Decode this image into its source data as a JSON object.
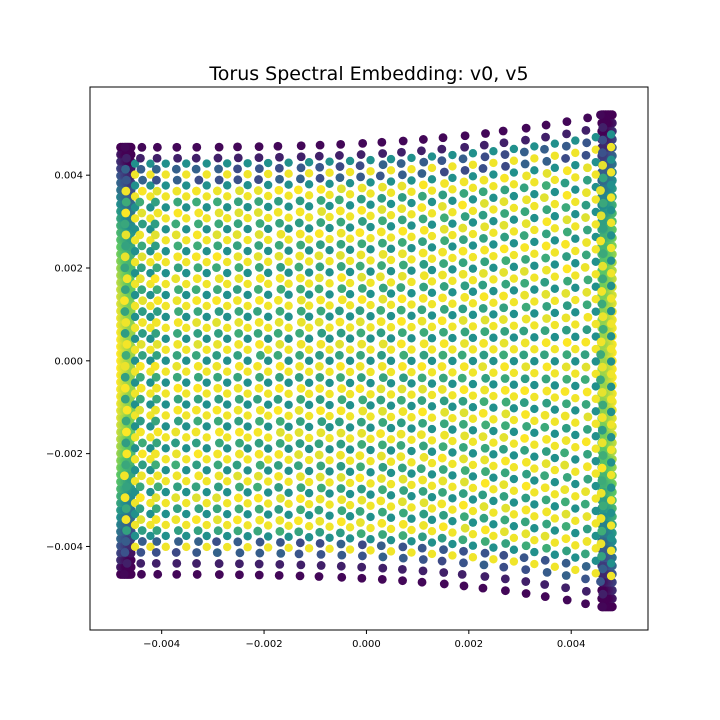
{
  "chart_data": {
    "type": "scatter",
    "title": "Torus Spectral Embedding: v0, v5",
    "xlabel": "",
    "ylabel": "",
    "xlim": [
      -0.0054,
      0.0055
    ],
    "ylim": [
      -0.0058,
      0.0059
    ],
    "x_ticks": [
      -0.004,
      -0.002,
      0.0,
      0.002,
      0.004
    ],
    "x_tick_labels": [
      "−0.004",
      "−0.002",
      "0.000",
      "0.002",
      "0.004"
    ],
    "y_ticks": [
      -0.004,
      -0.002,
      0.0,
      0.002,
      0.004
    ],
    "y_tick_labels": [
      "−0.004",
      "−0.002",
      "0.000",
      "0.002",
      "0.004"
    ],
    "grid": false,
    "legend": "none",
    "colormap": "viridis",
    "columns_x": [
      -0.0047,
      -0.0044,
      -0.0041,
      -0.0037,
      -0.0033,
      -0.0029,
      -0.0025,
      -0.0021,
      -0.0017,
      -0.0013,
      -0.0009,
      -0.0005,
      -0.0001,
      0.0003,
      0.0007,
      0.0011,
      0.0015,
      0.0019,
      0.0023,
      0.0027,
      0.0031,
      0.0035,
      0.0039,
      0.0043,
      0.0046
    ],
    "y_extent_left": [
      -0.0046,
      0.0046
    ],
    "y_extent_right": [
      -0.0053,
      0.0053
    ],
    "rows_per_column": 40
  },
  "colors": {
    "viridis_dark": "#440154",
    "viridis_blue": "#3b528b",
    "viridis_teal": "#21908c",
    "viridis_green": "#5dc863",
    "viridis_yellow": "#fde725",
    "axis": "#000000",
    "background": "#ffffff"
  }
}
